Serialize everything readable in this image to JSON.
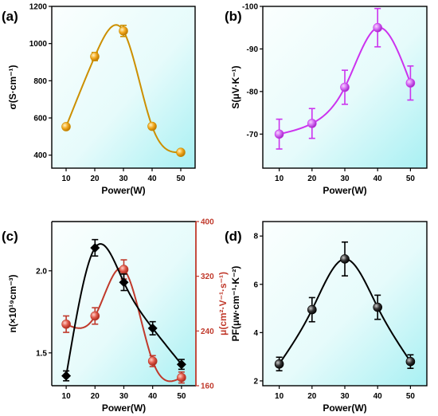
{
  "chart_data": [
    {
      "panel_label": "(a)",
      "type": "line",
      "x": [
        10,
        20,
        30,
        40,
        50
      ],
      "values": [
        553,
        930,
        1068,
        555,
        415
      ],
      "errors": [
        0,
        22,
        30,
        0,
        0
      ],
      "xlabel": "Power(W)",
      "ylabel": "σ(S·cm⁻¹)",
      "xlim": [
        5,
        55
      ],
      "ylim": [
        330,
        1200
      ],
      "xticks": [
        10,
        20,
        30,
        40,
        50
      ],
      "yticks": [
        400,
        600,
        800,
        1000,
        1200
      ],
      "color": "#cc8f00",
      "marker_color": "#f2a81d",
      "marker": "circle"
    },
    {
      "panel_label": "(b)",
      "type": "line",
      "x": [
        10,
        20,
        30,
        40,
        50
      ],
      "values": [
        -70,
        -72.5,
        -81,
        -95,
        -82
      ],
      "errors": [
        3.5,
        3.5,
        4,
        4.5,
        4
      ],
      "xlabel": "Power(W)",
      "ylabel": "S(μV·K⁻¹)",
      "xlim": [
        5,
        55
      ],
      "ylim": [
        -62,
        -100
      ],
      "y_inverted": true,
      "xticks": [
        10,
        20,
        30,
        40,
        50
      ],
      "yticks": [
        -70,
        -80,
        -90,
        -100
      ],
      "color": "#cc33ee",
      "marker_color": "#dd66ff",
      "marker": "circle"
    },
    {
      "panel_label": "(c)",
      "type": "line",
      "x": [
        10,
        20,
        30,
        40,
        50
      ],
      "xlabel": "Power(W)",
      "xlim": [
        5,
        55
      ],
      "xticks": [
        10,
        20,
        30,
        40,
        50
      ],
      "left_axis": {
        "ylabel": "n(×10¹⁹cm⁻³)",
        "ylim": [
          1.3,
          2.3
        ],
        "yticks": [
          1.5,
          2.0
        ],
        "values": [
          1.36,
          2.14,
          1.93,
          1.65,
          1.43
        ],
        "errors": [
          0.03,
          0.05,
          0.05,
          0.04,
          0.03
        ],
        "color": "#000000",
        "marker": "diamond"
      },
      "right_axis": {
        "ylabel": "μ(cm²·V⁻¹·s⁻¹)",
        "ylim": [
          160,
          400
        ],
        "yticks": [
          160,
          240,
          320,
          400
        ],
        "values": [
          250,
          262,
          330,
          196,
          172
        ],
        "errors": [
          12,
          12,
          14,
          8,
          8
        ],
        "color": "#c0392b",
        "marker_color": "#e05a4a",
        "marker": "circle"
      }
    },
    {
      "panel_label": "(d)",
      "type": "line",
      "x": [
        10,
        20,
        30,
        40,
        50
      ],
      "values": [
        2.7,
        4.95,
        7.05,
        5.05,
        2.8
      ],
      "errors": [
        0.28,
        0.5,
        0.7,
        0.5,
        0.28
      ],
      "xlabel": "Power(W)",
      "ylabel": "PF(μw·cm⁻¹·K⁻²)",
      "xlim": [
        5,
        55
      ],
      "ylim": [
        1.8,
        8.6
      ],
      "xticks": [
        10,
        20,
        30,
        40,
        50
      ],
      "yticks": [
        2,
        4,
        6,
        8
      ],
      "color": "#000000",
      "marker_color": "#222222",
      "marker": "circle"
    }
  ]
}
